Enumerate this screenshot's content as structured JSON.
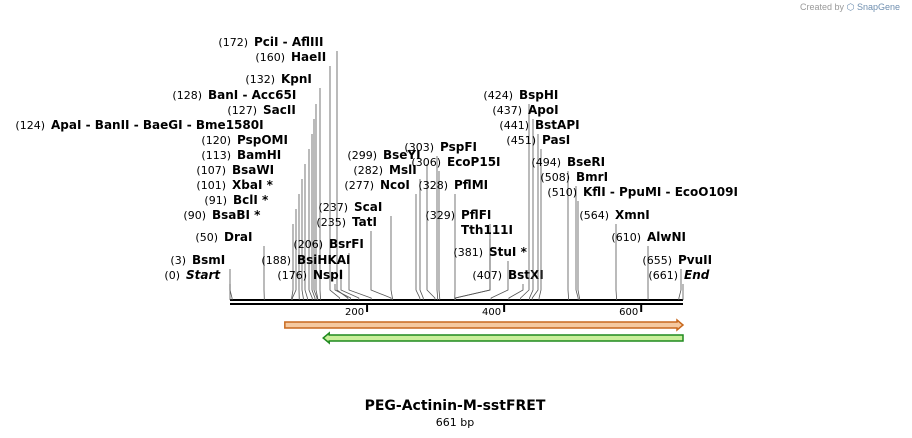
{
  "credit": {
    "prefix": "Created by",
    "brand": "SnapGene"
  },
  "title": "PEG-Actinin-M-sstFRET",
  "subtitle": "661 bp",
  "map": {
    "length": 661,
    "ticks": [
      {
        "bp": 200,
        "label": "200"
      },
      {
        "bp": 400,
        "label": "400"
      },
      {
        "bp": 600,
        "label": "600"
      }
    ],
    "features": [
      {
        "name": "forward-feature-arrow",
        "start": 80,
        "end": 661,
        "direction": "forward",
        "fill": "#f5c9a0",
        "stroke": "#c8691e"
      },
      {
        "name": "reverse-feature-arrow",
        "start": 136,
        "end": 661,
        "direction": "reverse",
        "fill": "#c9ef9b",
        "stroke": "#1f8a1f"
      }
    ],
    "sites": [
      {
        "pos": "(172)",
        "names": [
          "PciI",
          "AflIII"
        ],
        "cut": 172,
        "italic": false
      },
      {
        "pos": "(160)",
        "names": [
          "HaeII"
        ],
        "cut": 160,
        "italic": false
      },
      {
        "pos": "(132)",
        "names": [
          "KpnI"
        ],
        "cut": 132,
        "italic": false
      },
      {
        "pos": "(128)",
        "names": [
          "BanI",
          "Acc65I"
        ],
        "cut": 128,
        "italic": false
      },
      {
        "pos": "(127)",
        "names": [
          "SacII"
        ],
        "cut": 127,
        "italic": false
      },
      {
        "pos": "(124)",
        "names": [
          "ApaI",
          "BanII",
          "BaeGI",
          "Bme1580I"
        ],
        "cut": 124,
        "italic": false
      },
      {
        "pos": "(120)",
        "names": [
          "PspOMI"
        ],
        "cut": 120,
        "italic": false
      },
      {
        "pos": "(113)",
        "names": [
          "BamHI"
        ],
        "cut": 113,
        "italic": false
      },
      {
        "pos": "(107)",
        "names": [
          "BsaWI"
        ],
        "cut": 107,
        "italic": false
      },
      {
        "pos": "(101)",
        "names": [
          "XbaI *"
        ],
        "cut": 101,
        "italic": false
      },
      {
        "pos": "(91)",
        "names": [
          "BclI *"
        ],
        "cut": 91,
        "italic": false
      },
      {
        "pos": "(90)",
        "names": [
          "BsaBI *"
        ],
        "cut": 90,
        "italic": false
      },
      {
        "pos": "(50)",
        "names": [
          "DraI"
        ],
        "cut": 50,
        "italic": false
      },
      {
        "pos": "(3)",
        "names": [
          "BsmI"
        ],
        "cut": 3,
        "italic": false
      },
      {
        "pos": "(0)",
        "names": [
          "Start"
        ],
        "cut": 0,
        "italic": true
      },
      {
        "pos": "(299)",
        "names": [
          "BseYI"
        ],
        "cut": 299,
        "italic": false
      },
      {
        "pos": "(282)",
        "names": [
          "MslI"
        ],
        "cut": 282,
        "italic": false
      },
      {
        "pos": "(277)",
        "names": [
          "NcoI"
        ],
        "cut": 277,
        "italic": false
      },
      {
        "pos": "(237)",
        "names": [
          "ScaI"
        ],
        "cut": 237,
        "italic": false
      },
      {
        "pos": "(235)",
        "names": [
          "TatI"
        ],
        "cut": 235,
        "italic": false
      },
      {
        "pos": "(206)",
        "names": [
          "BsrFI"
        ],
        "cut": 206,
        "italic": false
      },
      {
        "pos": "(188)",
        "names": [
          "BsiHKAI"
        ],
        "cut": 188,
        "italic": false
      },
      {
        "pos": "(176)",
        "names": [
          "NspI"
        ],
        "cut": 176,
        "italic": false
      },
      {
        "pos": "(303)",
        "names": [
          "PspFI"
        ],
        "cut": 303,
        "italic": false
      },
      {
        "pos": "(306)",
        "names": [
          "EcoP15I"
        ],
        "cut": 306,
        "italic": false
      },
      {
        "pos": "(328)",
        "names": [
          "PflMI"
        ],
        "cut": 328,
        "italic": false
      },
      {
        "pos": "(329)",
        "names": [
          "PflFI"
        ],
        "cut": 329,
        "italic": false
      },
      {
        "pos": "",
        "names": [
          "Tth111I"
        ],
        "cut": 329,
        "italic": false
      },
      {
        "pos": "(381)",
        "names": [
          "StuI *"
        ],
        "cut": 381,
        "italic": false
      },
      {
        "pos": "(407)",
        "names": [
          "BstXI"
        ],
        "cut": 407,
        "italic": false
      },
      {
        "pos": "(424)",
        "names": [
          "BspHI"
        ],
        "cut": 424,
        "italic": false
      },
      {
        "pos": "(437)",
        "names": [
          "ApoI"
        ],
        "cut": 437,
        "italic": false
      },
      {
        "pos": "(441)",
        "names": [
          "BstAPI"
        ],
        "cut": 441,
        "italic": false
      },
      {
        "pos": "(451)",
        "names": [
          "PasI"
        ],
        "cut": 451,
        "italic": false
      },
      {
        "pos": "(494)",
        "names": [
          "BseRI"
        ],
        "cut": 494,
        "italic": false
      },
      {
        "pos": "(508)",
        "names": [
          "BmrI"
        ],
        "cut": 508,
        "italic": false
      },
      {
        "pos": "(510)",
        "names": [
          "KflI",
          "PpuMI",
          "EcoO109I"
        ],
        "cut": 510,
        "italic": false
      },
      {
        "pos": "(564)",
        "names": [
          "XmnI"
        ],
        "cut": 564,
        "italic": false
      },
      {
        "pos": "(610)",
        "names": [
          "AlwNI"
        ],
        "cut": 610,
        "italic": false
      },
      {
        "pos": "(655)",
        "names": [
          "PvuII"
        ],
        "cut": 655,
        "italic": false
      },
      {
        "pos": "(661)",
        "names": [
          "End"
        ],
        "cut": 661,
        "italic": true
      }
    ]
  }
}
